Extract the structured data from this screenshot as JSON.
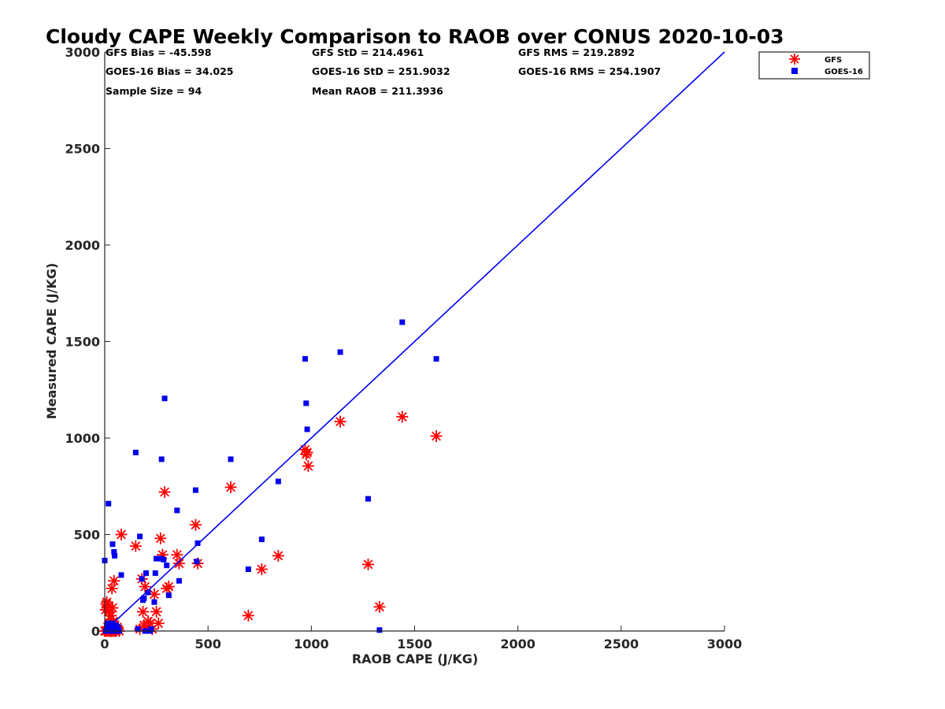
{
  "chart_data": {
    "type": "scatter",
    "title": "Cloudy CAPE Weekly Comparison to RAOB over CONUS 2020-10-03",
    "xlabel": "RAOB CAPE (J/KG)",
    "ylabel": "Measured CAPE (J/KG)",
    "xlim": [
      0,
      3000
    ],
    "ylim": [
      0,
      3000
    ],
    "xticks": [
      "0",
      "500",
      "1000",
      "1500",
      "2000",
      "2500",
      "3000"
    ],
    "yticks": [
      "0",
      "500",
      "1000",
      "1500",
      "2000",
      "2500",
      "3000"
    ],
    "grid": false,
    "legend": "top-right outside plot",
    "reference_line": {
      "x": [
        0,
        3000
      ],
      "y": [
        0,
        3000
      ],
      "color": "#0000ee"
    },
    "stats": [
      "GFS Bias = -45.598",
      "GFS StD = 214.4961",
      "GFS RMS = 219.2892",
      "GOES-16 Bias = 34.025",
      "GOES-16 StD = 251.9032",
      "GOES-16 RMS = 254.1907",
      "Sample Size = 94",
      "Mean RAOB = 211.3936"
    ],
    "series": [
      {
        "name": "GFS",
        "marker": "asterisk",
        "color": "#ff0000",
        "x": [
          0,
          5,
          8,
          10,
          12,
          15,
          18,
          20,
          22,
          25,
          28,
          30,
          32,
          35,
          38,
          40,
          42,
          45,
          48,
          50,
          55,
          60,
          65,
          70,
          80,
          150,
          170,
          180,
          185,
          190,
          195,
          200,
          210,
          220,
          230,
          240,
          250,
          260,
          270,
          280,
          290,
          300,
          310,
          350,
          360,
          440,
          450,
          610,
          695,
          760,
          840,
          970,
          975,
          980,
          985,
          1140,
          1275,
          1330,
          1440,
          1605,
          5,
          15,
          25,
          35,
          45,
          55,
          10,
          20,
          30,
          40
        ],
        "y": [
          0,
          110,
          140,
          150,
          120,
          20,
          100,
          130,
          40,
          10,
          60,
          80,
          0,
          220,
          120,
          20,
          50,
          260,
          30,
          0,
          0,
          20,
          10,
          0,
          500,
          440,
          10,
          270,
          100,
          30,
          230,
          20,
          50,
          40,
          10,
          190,
          100,
          40,
          480,
          395,
          720,
          220,
          230,
          395,
          350,
          550,
          350,
          745,
          80,
          320,
          390,
          940,
          915,
          925,
          855,
          1085,
          345,
          125,
          1110,
          1010,
          0,
          5,
          0,
          10,
          5,
          0,
          0,
          0,
          20,
          0
        ]
      },
      {
        "name": "GOES-16",
        "marker": "square",
        "color": "#0000ee",
        "x": [
          0,
          5,
          10,
          12,
          15,
          18,
          20,
          22,
          25,
          28,
          30,
          32,
          35,
          38,
          40,
          42,
          45,
          48,
          50,
          55,
          60,
          65,
          70,
          80,
          150,
          160,
          170,
          180,
          185,
          190,
          195,
          200,
          210,
          220,
          225,
          240,
          245,
          250,
          270,
          275,
          285,
          290,
          300,
          310,
          350,
          360,
          440,
          445,
          450,
          610,
          695,
          760,
          840,
          970,
          975,
          980,
          1140,
          1275,
          1330,
          1440,
          1605,
          10,
          20,
          30,
          40
        ],
        "y": [
          365,
          0,
          20,
          40,
          10,
          660,
          0,
          30,
          20,
          0,
          10,
          40,
          0,
          450,
          10,
          20,
          410,
          390,
          0,
          30,
          10,
          20,
          0,
          290,
          925,
          10,
          490,
          270,
          160,
          170,
          0,
          300,
          200,
          0,
          10,
          150,
          300,
          375,
          375,
          890,
          370,
          1205,
          340,
          185,
          625,
          260,
          730,
          360,
          455,
          890,
          320,
          475,
          775,
          1410,
          1180,
          1045,
          1445,
          685,
          5,
          1600,
          1410,
          5,
          0,
          0,
          15
        ]
      }
    ]
  }
}
